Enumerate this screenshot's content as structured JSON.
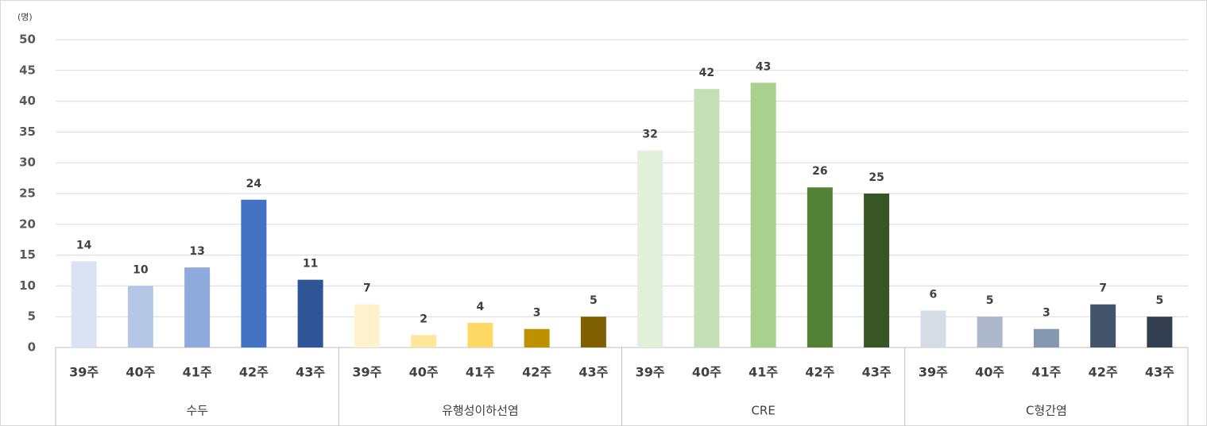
{
  "chart_data": {
    "type": "bar",
    "y_unit": "(명)",
    "ylim": [
      0,
      50
    ],
    "yticks": [
      0,
      5,
      10,
      15,
      20,
      25,
      30,
      35,
      40,
      45,
      50
    ],
    "grid": true,
    "groups": [
      {
        "name": "수두",
        "categories": [
          "39주",
          "40주",
          "41주",
          "42주",
          "43주"
        ],
        "values": [
          14,
          10,
          13,
          24,
          11
        ],
        "colors": [
          "#dae3f3",
          "#b4c7e7",
          "#8faadc",
          "#4472c4",
          "#2f5597"
        ]
      },
      {
        "name": "유행성이하선염",
        "categories": [
          "39주",
          "40주",
          "41주",
          "42주",
          "43주"
        ],
        "values": [
          7,
          2,
          4,
          3,
          5
        ],
        "colors": [
          "#fff2cc",
          "#ffe699",
          "#ffd966",
          "#bf9000",
          "#7f6000"
        ]
      },
      {
        "name": "CRE",
        "categories": [
          "39주",
          "40주",
          "41주",
          "42주",
          "43주"
        ],
        "values": [
          32,
          42,
          43,
          26,
          25
        ],
        "colors": [
          "#e2f0d9",
          "#c5e0b4",
          "#a9d18e",
          "#548235",
          "#375623"
        ]
      },
      {
        "name": "C형간염",
        "categories": [
          "39주",
          "40주",
          "41주",
          "42주",
          "43주"
        ],
        "values": [
          6,
          5,
          3,
          7,
          5
        ],
        "colors": [
          "#d6dce5",
          "#adb9ca",
          "#8497b0",
          "#44546a",
          "#333f50"
        ]
      }
    ]
  }
}
